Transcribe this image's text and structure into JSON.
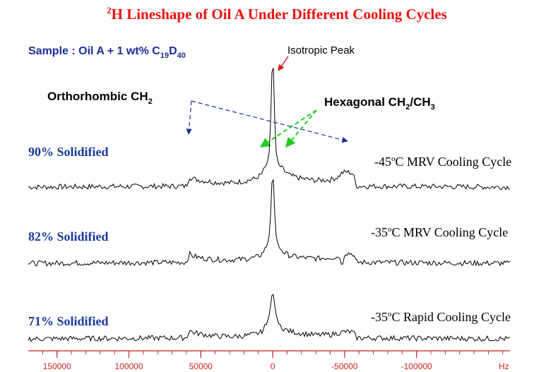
{
  "chart_data": {
    "type": "line",
    "title": {
      "sup": "2",
      "text": "H Lineshape of Oil A Under Different Cooling Cycles"
    },
    "sample": {
      "prefix": "Sample : Oil A + 1 wt% C",
      "sub1": "19",
      "mid": "D",
      "sub2": "40"
    },
    "annotations": {
      "isotropic": "Isotropic Peak",
      "orthorhombic": {
        "text": "Orthorhombic CH",
        "sub": "2"
      },
      "hexagonal": {
        "a": "Hexagonal CH",
        "sub1": "2",
        "b": "/CH",
        "sub2": "3"
      }
    },
    "x_axis": {
      "unit": "Hz",
      "reversed": true,
      "range": [
        170000,
        -165000
      ],
      "ticks": [
        {
          "value": 150000,
          "label": "150000"
        },
        {
          "value": 100000,
          "label": "100000"
        },
        {
          "value": 50000,
          "label": "50000"
        },
        {
          "value": 0,
          "label": "0"
        },
        {
          "value": -50000,
          "label": "-50000"
        },
        {
          "value": -100000,
          "label": "-100000"
        }
      ]
    },
    "series": [
      {
        "name": "90% Solidified",
        "cycle": {
          "temp": "-45",
          "rest": "C  MRV Cooling Cycle"
        },
        "points": [
          [
            170000,
            0
          ],
          [
            60000,
            0.05
          ],
          [
            58000,
            0.55
          ],
          [
            56000,
            0.45
          ],
          [
            50000,
            0.35
          ],
          [
            40000,
            0.25
          ],
          [
            30000,
            0.22
          ],
          [
            20000,
            0.3
          ],
          [
            12000,
            0.45
          ],
          [
            8000,
            0.65
          ],
          [
            4000,
            1.2
          ],
          [
            2000,
            2.0
          ],
          [
            0,
            7.5
          ],
          [
            -2000,
            2.0
          ],
          [
            -4000,
            1.2
          ],
          [
            -8000,
            0.85
          ],
          [
            -12000,
            0.6
          ],
          [
            -20000,
            0.45
          ],
          [
            -30000,
            0.35
          ],
          [
            -40000,
            0.38
          ],
          [
            -46000,
            0.55
          ],
          [
            -48000,
            0.75
          ],
          [
            -52000,
            0.8
          ],
          [
            -56000,
            0.7
          ],
          [
            -58000,
            0.05
          ],
          [
            -165000,
            0
          ]
        ]
      },
      {
        "name": "82% Solidified",
        "cycle": {
          "temp": "-35",
          "rest": "C   MRV Cooling Cycle"
        },
        "points": [
          [
            170000,
            0
          ],
          [
            60000,
            0.05
          ],
          [
            58000,
            0.5
          ],
          [
            56000,
            0.4
          ],
          [
            50000,
            0.28
          ],
          [
            40000,
            0.2
          ],
          [
            30000,
            0.18
          ],
          [
            20000,
            0.22
          ],
          [
            12000,
            0.3
          ],
          [
            8000,
            0.45
          ],
          [
            4000,
            0.9
          ],
          [
            2000,
            1.6
          ],
          [
            0,
            5.2
          ],
          [
            -2000,
            1.6
          ],
          [
            -4000,
            0.9
          ],
          [
            -8000,
            0.55
          ],
          [
            -12000,
            0.4
          ],
          [
            -20000,
            0.3
          ],
          [
            -30000,
            0.25
          ],
          [
            -40000,
            0.3
          ],
          [
            -47000,
            0.35
          ],
          [
            -48000,
            -0.25
          ],
          [
            -50000,
            0.55
          ],
          [
            -56000,
            0.5
          ],
          [
            -58000,
            0.05
          ],
          [
            -165000,
            0
          ]
        ]
      },
      {
        "name": "71% Solidified",
        "cycle": {
          "temp": "-35",
          "rest": "C   Rapid Cooling Cycle"
        },
        "points": [
          [
            170000,
            0
          ],
          [
            60000,
            0.05
          ],
          [
            58000,
            0.45
          ],
          [
            56000,
            0.35
          ],
          [
            50000,
            0.25
          ],
          [
            40000,
            0.15
          ],
          [
            30000,
            0.12
          ],
          [
            20000,
            0.15
          ],
          [
            12000,
            0.25
          ],
          [
            8000,
            0.35
          ],
          [
            4000,
            0.8
          ],
          [
            2000,
            1.4
          ],
          [
            0,
            2.6
          ],
          [
            -2000,
            1.4
          ],
          [
            -4000,
            0.8
          ],
          [
            -8000,
            0.5
          ],
          [
            -12000,
            0.4
          ],
          [
            -20000,
            0.28
          ],
          [
            -30000,
            0.2
          ],
          [
            -40000,
            0.22
          ],
          [
            -47000,
            0.32
          ],
          [
            -50000,
            0.38
          ],
          [
            -56000,
            0.35
          ],
          [
            -58000,
            0.05
          ],
          [
            -165000,
            0
          ]
        ]
      }
    ],
    "colors": {
      "title": "#ee1111",
      "sample": "#1a2d9a",
      "label": "#1a3a9a",
      "axis": "#cc2222",
      "arrow_blue": "#1a2d9a",
      "arrow_green": "#22cc22",
      "arrow_red": "#dd1111",
      "trace": "#000000"
    }
  }
}
